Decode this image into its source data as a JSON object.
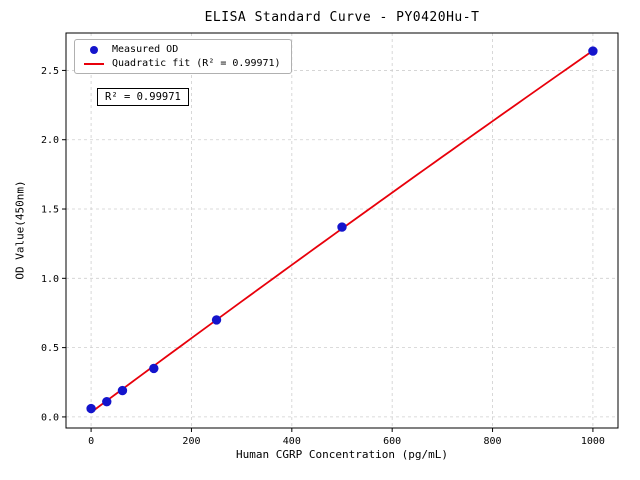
{
  "chart_data": {
    "type": "scatter",
    "title": "ELISA Standard Curve - PY0420Hu-T",
    "xlabel": "Human CGRP Concentration (pg/mL)",
    "ylabel": "OD Value(450nm)",
    "x": [
      0,
      31.25,
      62.5,
      125,
      250,
      500,
      1000
    ],
    "y": [
      0.06,
      0.11,
      0.19,
      0.35,
      0.7,
      1.37,
      2.64
    ],
    "series": [
      {
        "name": "Measured OD",
        "kind": "scatter",
        "color": "#1414cc"
      },
      {
        "name": "Quadratic fit (R² = 0.99971)",
        "kind": "line",
        "color": "#e8000b"
      }
    ],
    "xticks": [
      0,
      200,
      400,
      600,
      800,
      1000
    ],
    "xtick_labels": [
      "0",
      "200",
      "400",
      "600",
      "800",
      "1000"
    ],
    "yticks": [
      0.0,
      0.5,
      1.0,
      1.5,
      2.0,
      2.5
    ],
    "ytick_labels": [
      "0.0",
      "0.5",
      "1.0",
      "1.5",
      "2.0",
      "2.5"
    ],
    "xlim": [
      -50,
      1050
    ],
    "ylim": [
      -0.08,
      2.77
    ],
    "grid": true,
    "legend_position": "upper left",
    "annotation": "R² = 0.99971",
    "r_squared": 0.99971
  }
}
